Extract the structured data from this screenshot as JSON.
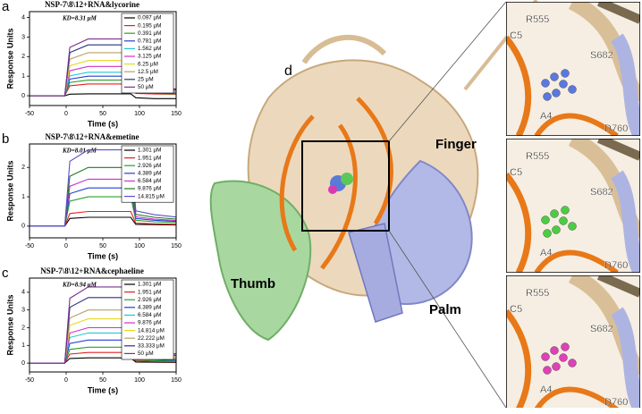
{
  "chart_data": [
    {
      "type": "line",
      "panel_label": "a",
      "title": "NSP-7\\8\\12+RNA&lycorine",
      "subtitle": "KD=8.31 μM",
      "x_label": "Time (s)",
      "y_label": "Response Units",
      "x": [
        -50,
        -2,
        5,
        30,
        60,
        88,
        95,
        120,
        150
      ],
      "xlim": [
        -50,
        150
      ],
      "xticks": [
        -50,
        0,
        50,
        100,
        150
      ],
      "ylim": [
        -0.5,
        4.3
      ],
      "yticks": [
        0,
        1,
        2,
        3,
        4
      ],
      "legend": "upper right",
      "series": [
        {
          "name": "0.097 μM",
          "color": "#000000",
          "values": [
            0,
            0,
            0.08,
            0.1,
            0.1,
            0.1,
            -0.1,
            -0.15,
            -0.15
          ]
        },
        {
          "name": "0.195 μM",
          "color": "#e32020",
          "values": [
            0,
            0,
            0.51,
            0.6,
            0.6,
            0.6,
            0.12,
            0.09,
            0.07
          ]
        },
        {
          "name": "0.391 μM",
          "color": "#2aa02a",
          "values": [
            0,
            0,
            0.68,
            0.8,
            0.8,
            0.8,
            0.16,
            0.12,
            0.1
          ]
        },
        {
          "name": "0.781 μM",
          "color": "#2040d0",
          "values": [
            0,
            0,
            0.85,
            1.0,
            1.0,
            1.0,
            0.2,
            0.15,
            0.12
          ]
        },
        {
          "name": "1.562 μM",
          "color": "#20c8d8",
          "values": [
            0,
            0,
            1.02,
            1.2,
            1.2,
            1.2,
            0.24,
            0.18,
            0.14
          ]
        },
        {
          "name": "3.125 μM",
          "color": "#d030c8",
          "values": [
            0,
            0,
            1.28,
            1.5,
            1.5,
            1.5,
            0.3,
            0.23,
            0.18
          ]
        },
        {
          "name": "6.25 μM",
          "color": "#e8d820",
          "values": [
            0,
            0,
            1.53,
            1.8,
            1.8,
            1.8,
            0.36,
            0.27,
            0.22
          ]
        },
        {
          "name": "12.5 μM",
          "color": "#b8a060",
          "values": [
            0,
            0,
            1.87,
            2.2,
            2.2,
            2.2,
            0.44,
            0.33,
            0.26
          ]
        },
        {
          "name": "25 μM",
          "color": "#283080",
          "values": [
            0,
            0,
            2.21,
            2.6,
            2.6,
            2.6,
            0.52,
            0.39,
            0.31
          ]
        },
        {
          "name": "50 μM",
          "color": "#7a3090",
          "values": [
            0,
            0,
            2.47,
            2.9,
            2.9,
            2.9,
            0.58,
            0.44,
            0.35
          ]
        }
      ]
    },
    {
      "type": "line",
      "panel_label": "b",
      "title": "NSP-7\\8\\12+RNA&emetine",
      "subtitle": "KD=8.01 μM",
      "x_label": "Time (s)",
      "y_label": "Response Units",
      "x": [
        -50,
        -2,
        5,
        30,
        60,
        88,
        95,
        120,
        150
      ],
      "xlim": [
        -50,
        150
      ],
      "xticks": [
        -50,
        0,
        50,
        100,
        150
      ],
      "ylim": [
        -0.4,
        2.8
      ],
      "yticks": [
        0,
        1,
        2
      ],
      "legend": "upper right",
      "series": [
        {
          "name": "1.301 μM",
          "color": "#000000",
          "values": [
            0,
            0,
            0.26,
            0.3,
            0.3,
            0.3,
            0.06,
            0.05,
            0.04
          ]
        },
        {
          "name": "1.951 μM",
          "color": "#e32020",
          "values": [
            0,
            0,
            0.43,
            0.5,
            0.5,
            0.5,
            0.1,
            0.08,
            0.06
          ]
        },
        {
          "name": "2.926 μM",
          "color": "#2aa02a",
          "values": [
            0,
            0,
            0.85,
            1.0,
            1.0,
            1.0,
            0.2,
            0.15,
            0.12
          ]
        },
        {
          "name": "4.389 μM",
          "color": "#2040d0",
          "values": [
            0,
            0,
            1.11,
            1.3,
            1.3,
            1.3,
            0.26,
            0.2,
            0.16
          ]
        },
        {
          "name": "6.584 μM",
          "color": "#d030c8",
          "values": [
            0,
            0,
            1.36,
            1.6,
            1.6,
            1.6,
            0.32,
            0.24,
            0.19
          ]
        },
        {
          "name": "9.876 μM",
          "color": "#1f7a1f",
          "values": [
            0,
            0,
            1.7,
            2.0,
            2.0,
            2.0,
            0.4,
            0.3,
            0.24
          ]
        },
        {
          "name": "14.815 μM",
          "color": "#5a50c8",
          "values": [
            0,
            0,
            2.21,
            2.6,
            2.6,
            2.6,
            0.52,
            0.39,
            0.31
          ]
        }
      ]
    },
    {
      "type": "line",
      "panel_label": "c",
      "title": "NSP-7\\8\\12+RNA&cephaeline",
      "subtitle": "KD=8.94 μM",
      "x_label": "Time (s)",
      "y_label": "Response Units",
      "x": [
        -50,
        -2,
        5,
        30,
        60,
        88,
        95,
        120,
        150
      ],
      "xlim": [
        -50,
        150
      ],
      "xticks": [
        -50,
        0,
        50,
        100,
        150
      ],
      "ylim": [
        -0.5,
        4.8
      ],
      "yticks": [
        0,
        1,
        2,
        3,
        4
      ],
      "legend": "upper right",
      "series": [
        {
          "name": "1.301 μM",
          "color": "#000000",
          "values": [
            0,
            0,
            0.26,
            0.3,
            0.3,
            0.3,
            0.06,
            0.05,
            0.04
          ]
        },
        {
          "name": "1.951 μM",
          "color": "#e32020",
          "values": [
            0,
            0,
            0.51,
            0.6,
            0.6,
            0.6,
            0.12,
            0.09,
            0.07
          ]
        },
        {
          "name": "2.926 μM",
          "color": "#2aa02a",
          "values": [
            0,
            0,
            0.77,
            0.9,
            0.9,
            0.9,
            0.18,
            0.14,
            0.11
          ]
        },
        {
          "name": "4.389 μM",
          "color": "#2040d0",
          "values": [
            0,
            0,
            1.11,
            1.3,
            1.3,
            1.3,
            0.26,
            0.2,
            0.16
          ]
        },
        {
          "name": "6.584 μM",
          "color": "#20c8d8",
          "values": [
            0,
            0,
            1.45,
            1.7,
            1.7,
            1.7,
            0.34,
            0.26,
            0.2
          ]
        },
        {
          "name": "9.876 μM",
          "color": "#d030c8",
          "values": [
            0,
            0,
            1.7,
            2.0,
            2.0,
            2.0,
            0.4,
            0.3,
            0.24
          ]
        },
        {
          "name": "14.814 μM",
          "color": "#e8d820",
          "values": [
            0,
            0,
            2.13,
            2.5,
            2.5,
            2.5,
            0.5,
            0.38,
            0.3
          ]
        },
        {
          "name": "22.222 μM",
          "color": "#b8a060",
          "values": [
            0,
            0,
            2.55,
            3.0,
            3.0,
            3.0,
            0.6,
            0.45,
            0.36
          ]
        },
        {
          "name": "33.333 μM",
          "color": "#283080",
          "values": [
            0,
            0,
            3.15,
            3.7,
            3.7,
            3.7,
            0.74,
            0.56,
            0.44
          ]
        },
        {
          "name": "50 μM",
          "color": "#7a3090",
          "values": [
            0,
            0,
            3.66,
            4.3,
            4.3,
            4.3,
            0.86,
            0.65,
            0.52
          ]
        }
      ]
    }
  ],
  "structure": {
    "panel_label": "d",
    "domains": {
      "finger": "Finger",
      "thumb": "Thumb",
      "palm": "Palm"
    },
    "insets": [
      [
        "R555",
        "C5",
        "S682",
        "A4",
        "D760"
      ],
      [
        "R555",
        "C5",
        "S682",
        "A4",
        "D760"
      ],
      [
        "R555",
        "C5",
        "S682",
        "A4",
        "D760"
      ]
    ]
  }
}
